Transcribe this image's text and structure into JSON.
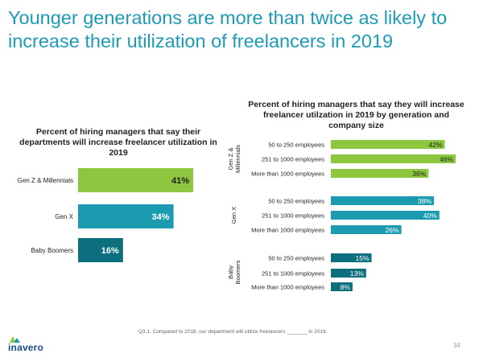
{
  "page": {
    "title": "Younger generations are more than twice as likely to increase their utilization of freelancers in 2019",
    "footnote": "Q3.1. Compared to 2018, our department will utilize freelancers _______ in 2019.",
    "page_number": "34",
    "logo_text": "inavero"
  },
  "colors": {
    "title": "#1d9bb4",
    "gen_z": "#8dc63f",
    "gen_x": "#1a9bb0",
    "boomers": "#0d6e7e"
  },
  "chart_data": [
    {
      "type": "bar",
      "orientation": "horizontal",
      "title": "Percent of hiring managers that say their departments will increase freelancer utilization in 2019",
      "categories": [
        "Gen Z & Millennials",
        "Gen X",
        "Baby Boomers"
      ],
      "values": [
        41,
        34,
        16
      ],
      "value_labels": [
        "41%",
        "34%",
        "16%"
      ],
      "xlim": [
        0,
        50
      ]
    },
    {
      "type": "bar",
      "orientation": "horizontal",
      "title": "Percent of hiring managers that say they will increase freelancer utilzation in 2019 by generation and company size",
      "groups": [
        {
          "name": "Gen Z & Millennials",
          "categories": [
            "50 to 250 employees",
            "251 to 1000 employees",
            "More than 1000 employees"
          ],
          "values": [
            42,
            46,
            36
          ],
          "value_labels": [
            "42%",
            "46%",
            "36%"
          ]
        },
        {
          "name": "Gen X",
          "categories": [
            "50 to 250 employees",
            "251 to 1000 employees",
            "More than 1000 employees"
          ],
          "values": [
            38,
            40,
            26
          ],
          "value_labels": [
            "38%",
            "40%",
            "26%"
          ]
        },
        {
          "name": "Baby Boomers",
          "categories": [
            "50 to 250 employees",
            "251 to 1000 employees",
            "More than 1000 employees"
          ],
          "values": [
            15,
            13,
            8
          ],
          "value_labels": [
            "15%",
            "13%",
            "8%"
          ]
        }
      ],
      "xlim": [
        0,
        50
      ]
    }
  ]
}
